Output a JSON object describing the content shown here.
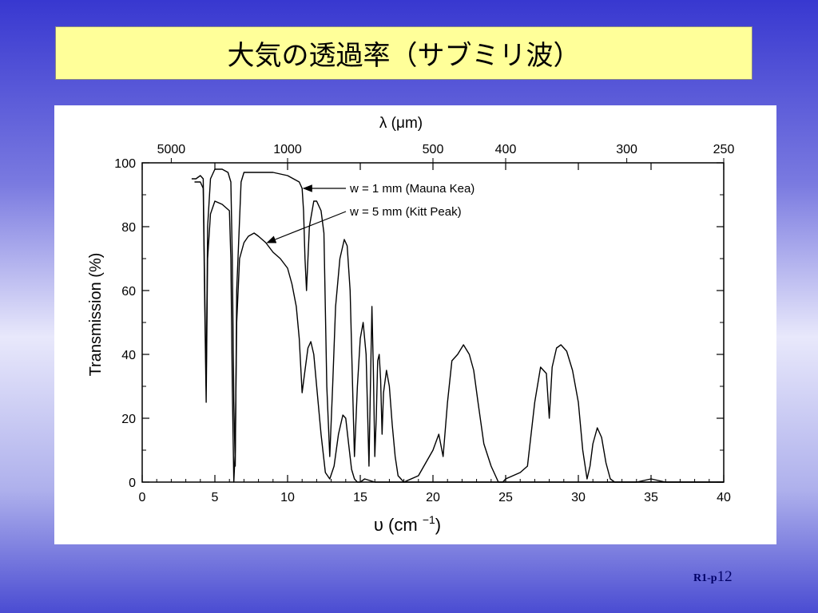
{
  "slide": {
    "title": "大気の透過率（サブミリ波）",
    "page_prefix": "R1-p",
    "page_number": "12"
  },
  "chart_data": {
    "type": "line",
    "top_axis_label": "λ (μm)",
    "top_ticks": [
      {
        "label": "5000",
        "x": 2
      },
      {
        "label": "1000",
        "x": 10
      },
      {
        "label": "500",
        "x": 20
      },
      {
        "label": "400",
        "x": 25
      },
      {
        "label": "300",
        "x": 33.33
      },
      {
        "label": "250",
        "x": 40
      }
    ],
    "xlabel": "υ (cm ⁻¹)",
    "xlabel_base": "υ (cm ",
    "xlabel_sup": "−1",
    "xlabel_close": ")",
    "ylabel": "Transmission (%)",
    "xlim": [
      0,
      40
    ],
    "ylim": [
      0,
      100
    ],
    "xticks": [
      "0",
      "5",
      "10",
      "15",
      "20",
      "25",
      "30",
      "35",
      "40"
    ],
    "yticks": [
      "0",
      "20",
      "40",
      "60",
      "80",
      "100"
    ],
    "series": [
      {
        "name": "w = 1 mm (Mauna Kea)",
        "x": [
          3.4,
          3.7,
          4.0,
          4.2,
          4.3,
          4.4,
          4.5,
          4.7,
          5.0,
          5.5,
          5.9,
          6.1,
          6.2,
          6.3,
          6.4,
          6.5,
          6.8,
          7.0,
          7.5,
          8.0,
          9.0,
          10.0,
          10.4,
          10.8,
          11.0,
          11.1,
          11.2,
          11.3,
          11.5,
          11.8,
          12.0,
          12.3,
          12.5,
          12.7,
          12.9,
          13.1,
          13.3,
          13.6,
          13.9,
          14.1,
          14.3,
          14.5,
          14.6,
          14.8,
          15.0,
          15.2,
          15.4,
          15.6,
          15.7,
          15.8,
          15.9,
          16.0,
          16.1,
          16.2,
          16.3,
          16.4,
          16.5,
          16.6,
          16.8,
          17.0,
          17.2,
          17.4,
          17.6,
          18.0,
          19.0,
          20.0,
          20.4,
          20.7,
          21.0,
          21.3,
          21.7,
          22.1,
          22.5,
          22.8,
          23.1,
          23.5,
          24.0,
          24.5,
          24.8,
          25.0,
          25.5,
          26.0,
          26.5,
          27.0,
          27.4,
          27.8,
          28.0,
          28.2,
          28.5,
          28.8,
          29.2,
          29.6,
          30.0,
          30.3,
          30.6,
          30.8,
          31.0,
          31.3,
          31.6,
          31.9,
          32.2,
          32.5,
          33.0,
          34.0,
          35.0,
          36.0,
          40.0
        ],
        "y": [
          95,
          95,
          96,
          95,
          60,
          30,
          80,
          95,
          98,
          98,
          97,
          94,
          70,
          25,
          5,
          60,
          94,
          97,
          97,
          97,
          97,
          96,
          95,
          94,
          92,
          85,
          70,
          60,
          80,
          88,
          88,
          85,
          78,
          30,
          8,
          30,
          55,
          70,
          76,
          74,
          60,
          25,
          8,
          30,
          45,
          50,
          40,
          5,
          30,
          55,
          35,
          8,
          20,
          38,
          40,
          32,
          15,
          28,
          35,
          30,
          18,
          8,
          2,
          0,
          2,
          10,
          15,
          8,
          25,
          38,
          40,
          43,
          40,
          35,
          25,
          12,
          5,
          0,
          0,
          1,
          2,
          3,
          5,
          25,
          36,
          34,
          20,
          36,
          42,
          43,
          41,
          35,
          25,
          10,
          1,
          5,
          12,
          17,
          14,
          6,
          1,
          0,
          0,
          0,
          1,
          0,
          0
        ]
      },
      {
        "name": "w = 5 mm (Kitt Peak)",
        "x": [
          3.6,
          4.0,
          4.2,
          4.3,
          4.4,
          4.5,
          4.7,
          5.0,
          5.5,
          6.0,
          6.1,
          6.2,
          6.3,
          6.4,
          6.5,
          6.7,
          7.0,
          7.3,
          7.7,
          8.0,
          8.5,
          9.0,
          9.5,
          10.0,
          10.3,
          10.6,
          10.8,
          11.0,
          11.2,
          11.4,
          11.6,
          11.8,
          12.0,
          12.3,
          12.6,
          12.9,
          13.2,
          13.5,
          13.8,
          14.0,
          14.2,
          14.4,
          14.6,
          14.8,
          15.0,
          15.3,
          16.0,
          20.0,
          25.0,
          30.0,
          35.0,
          40.0
        ],
        "y": [
          94,
          94,
          92,
          55,
          25,
          70,
          84,
          88,
          87,
          85,
          70,
          30,
          0,
          10,
          50,
          70,
          75,
          77,
          78,
          77,
          75,
          72,
          70,
          67,
          62,
          55,
          45,
          28,
          35,
          42,
          44,
          40,
          30,
          15,
          3,
          1,
          5,
          15,
          21,
          20,
          12,
          4,
          1,
          0,
          0,
          1,
          0,
          0,
          0,
          0,
          0,
          0
        ]
      }
    ],
    "annotations": [
      {
        "text": "w = 1 mm (Mauna Kea)",
        "points_to": "series 1 at ν ≈ 11"
      },
      {
        "text": "w = 5 mm (Kitt Peak)",
        "points_to": "series 2 at ν ≈ 8.5"
      }
    ],
    "grid": false,
    "legend": "inline annotations with arrows, upper middle",
    "colors": {
      "line": "#000000",
      "title_bg": "#ffff99",
      "page_number": "#000066"
    }
  }
}
